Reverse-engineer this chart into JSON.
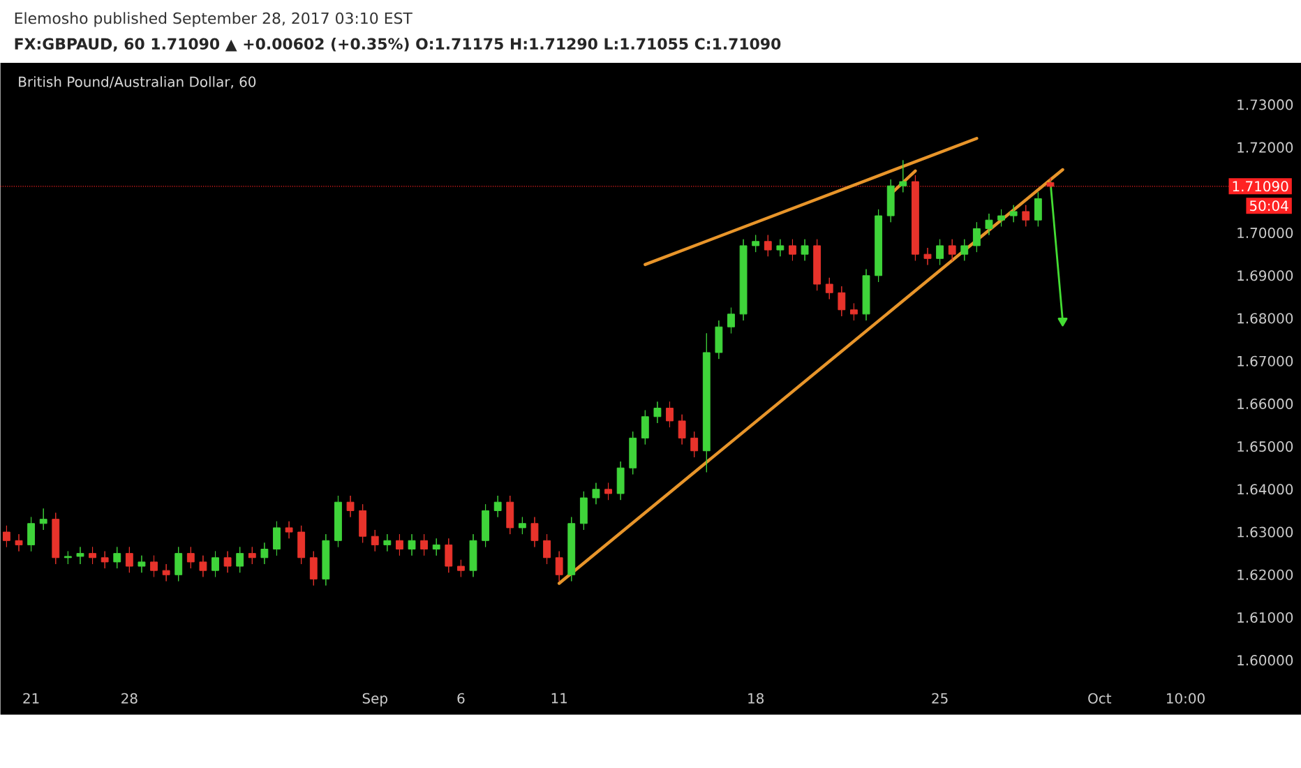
{
  "chart_data": {
    "type": "candlestick",
    "title": "FX:GBPAUD, 60  1.71090 ▲ +0.00602 (+0.35%) O:1.71175 H:1.71290 L:1.71055 C:1.71090",
    "subtitle": "British Pound/Australian Dollar, 60",
    "annotations": [
      "Elemosho published September 28, 2017 03:10 EST",
      "50:04"
    ],
    "categories": [
      null,
      null,
      "21",
      null,
      null,
      null,
      null,
      null,
      null,
      null,
      "28",
      null,
      null,
      null,
      null,
      null,
      null,
      null,
      null,
      null,
      null,
      null,
      null,
      null,
      null,
      null,
      null,
      null,
      null,
      null,
      "Sep",
      null,
      null,
      null,
      null,
      null,
      null,
      "6",
      null,
      null,
      null,
      null,
      null,
      null,
      null,
      "11",
      null,
      null,
      null,
      null,
      null,
      null,
      null,
      null,
      null,
      null,
      null,
      null,
      null,
      null,
      null,
      "18",
      null,
      null,
      null,
      null,
      null,
      null,
      null,
      null,
      null,
      null,
      null,
      null,
      null,
      null,
      "25",
      null,
      null,
      null,
      null,
      null,
      null,
      null,
      null,
      null,
      null,
      null,
      null,
      "Oct",
      null,
      null,
      null,
      null,
      null,
      null,
      "10:00",
      null,
      null,
      null
    ],
    "ohlc": [
      [
        1.63,
        1.6315,
        1.6265,
        1.628
      ],
      [
        1.628,
        1.6295,
        1.6255,
        1.627
      ],
      [
        1.627,
        1.6335,
        1.6255,
        1.632
      ],
      [
        1.632,
        1.6355,
        1.6305,
        1.633
      ],
      [
        1.633,
        1.6345,
        1.6225,
        1.624
      ],
      [
        1.624,
        1.6255,
        1.6225,
        1.6243
      ],
      [
        1.6243,
        1.6265,
        1.6225,
        1.625
      ],
      [
        1.625,
        1.6265,
        1.6225,
        1.624
      ],
      [
        1.624,
        1.6255,
        1.6215,
        1.623
      ],
      [
        1.623,
        1.6265,
        1.6215,
        1.625
      ],
      [
        1.625,
        1.6265,
        1.6205,
        1.622
      ],
      [
        1.622,
        1.6245,
        1.6205,
        1.623
      ],
      [
        1.623,
        1.6245,
        1.6195,
        1.621
      ],
      [
        1.621,
        1.6225,
        1.6185,
        1.62
      ],
      [
        1.62,
        1.6265,
        1.6185,
        1.625
      ],
      [
        1.625,
        1.6265,
        1.6215,
        1.623
      ],
      [
        1.623,
        1.6245,
        1.6195,
        1.621
      ],
      [
        1.621,
        1.6255,
        1.6195,
        1.624
      ],
      [
        1.624,
        1.6255,
        1.6205,
        1.622
      ],
      [
        1.622,
        1.6265,
        1.6205,
        1.625
      ],
      [
        1.625,
        1.6265,
        1.6225,
        1.624
      ],
      [
        1.624,
        1.6275,
        1.6225,
        1.626
      ],
      [
        1.626,
        1.6325,
        1.6245,
        1.631
      ],
      [
        1.631,
        1.6325,
        1.6285,
        1.63
      ],
      [
        1.63,
        1.6315,
        1.6225,
        1.624
      ],
      [
        1.624,
        1.6255,
        1.6175,
        1.619
      ],
      [
        1.619,
        1.6295,
        1.6175,
        1.628
      ],
      [
        1.628,
        1.6385,
        1.6265,
        1.637
      ],
      [
        1.637,
        1.6385,
        1.6335,
        1.635
      ],
      [
        1.635,
        1.6365,
        1.6275,
        1.629
      ],
      [
        1.629,
        1.6305,
        1.6255,
        1.627
      ],
      [
        1.627,
        1.6295,
        1.6255,
        1.628
      ],
      [
        1.628,
        1.6295,
        1.6245,
        1.626
      ],
      [
        1.626,
        1.6295,
        1.6245,
        1.628
      ],
      [
        1.628,
        1.6295,
        1.6245,
        1.626
      ],
      [
        1.626,
        1.6285,
        1.6245,
        1.627
      ],
      [
        1.627,
        1.6285,
        1.6205,
        1.622
      ],
      [
        1.622,
        1.6235,
        1.6195,
        1.621
      ],
      [
        1.621,
        1.6295,
        1.6195,
        1.628
      ],
      [
        1.628,
        1.6365,
        1.6265,
        1.635
      ],
      [
        1.635,
        1.6385,
        1.6335,
        1.637
      ],
      [
        1.637,
        1.6385,
        1.6295,
        1.631
      ],
      [
        1.631,
        1.6335,
        1.6295,
        1.632
      ],
      [
        1.632,
        1.6335,
        1.6265,
        1.628
      ],
      [
        1.628,
        1.6295,
        1.6225,
        1.624
      ],
      [
        1.624,
        1.6255,
        1.6185,
        1.62
      ],
      [
        1.62,
        1.6335,
        1.6185,
        1.632
      ],
      [
        1.632,
        1.6395,
        1.6305,
        1.638
      ],
      [
        1.638,
        1.6415,
        1.6365,
        1.64
      ],
      [
        1.64,
        1.6415,
        1.6375,
        1.639
      ],
      [
        1.639,
        1.6465,
        1.6375,
        1.645
      ],
      [
        1.645,
        1.6535,
        1.6435,
        1.652
      ],
      [
        1.652,
        1.6585,
        1.6505,
        1.657
      ],
      [
        1.657,
        1.6605,
        1.6555,
        1.659
      ],
      [
        1.659,
        1.6605,
        1.6545,
        1.656
      ],
      [
        1.656,
        1.6575,
        1.6505,
        1.652
      ],
      [
        1.652,
        1.6535,
        1.6475,
        1.649
      ],
      [
        1.649,
        1.6765,
        1.644,
        1.672
      ],
      [
        1.672,
        1.6795,
        1.6705,
        1.678
      ],
      [
        1.678,
        1.6825,
        1.6765,
        1.681
      ],
      [
        1.681,
        1.6985,
        1.6795,
        1.697
      ],
      [
        1.697,
        1.6995,
        1.6955,
        1.698
      ],
      [
        1.698,
        1.6995,
        1.6945,
        1.696
      ],
      [
        1.696,
        1.6985,
        1.6945,
        1.697
      ],
      [
        1.697,
        1.6985,
        1.6935,
        1.695
      ],
      [
        1.695,
        1.6985,
        1.6935,
        1.697
      ],
      [
        1.697,
        1.6985,
        1.6865,
        1.688
      ],
      [
        1.688,
        1.6895,
        1.6845,
        1.686
      ],
      [
        1.686,
        1.6875,
        1.6805,
        1.682
      ],
      [
        1.682,
        1.6835,
        1.6795,
        1.681
      ],
      [
        1.681,
        1.6915,
        1.6795,
        1.69
      ],
      [
        1.69,
        1.7055,
        1.6885,
        1.704
      ],
      [
        1.704,
        1.7125,
        1.7025,
        1.711
      ],
      [
        1.711,
        1.717,
        1.7095,
        1.712
      ],
      [
        1.712,
        1.7135,
        1.6935,
        1.695
      ],
      [
        1.695,
        1.6965,
        1.6925,
        1.694
      ],
      [
        1.694,
        1.6985,
        1.6925,
        1.697
      ],
      [
        1.697,
        1.6985,
        1.6935,
        1.695
      ],
      [
        1.695,
        1.6985,
        1.6935,
        1.697
      ],
      [
        1.697,
        1.7025,
        1.6955,
        1.701
      ],
      [
        1.701,
        1.7045,
        1.6995,
        1.703
      ],
      [
        1.703,
        1.7055,
        1.7015,
        1.704
      ],
      [
        1.704,
        1.7065,
        1.7025,
        1.705
      ],
      [
        1.705,
        1.7065,
        1.7015,
        1.703
      ],
      [
        1.703,
        1.7095,
        1.7015,
        1.708
      ],
      [
        1.71175,
        1.7129,
        1.71055,
        1.7109
      ],
      null,
      null,
      null,
      null,
      null,
      null,
      null,
      null,
      null,
      null,
      null,
      null,
      null,
      null
    ],
    "series": [
      {
        "type": "line",
        "color": "#e8952a",
        "values": [
          null,
          null,
          null,
          null,
          null,
          null,
          null,
          null,
          null,
          null,
          null,
          null,
          null,
          null,
          null,
          null,
          null,
          null,
          null,
          null,
          null,
          null,
          null,
          null,
          null,
          null,
          null,
          null,
          null,
          null,
          null,
          null,
          null,
          null,
          null,
          null,
          null,
          null,
          null,
          null,
          null,
          null,
          null,
          null,
          null,
          null,
          null,
          null,
          null,
          null,
          null,
          null,
          1.6926,
          null,
          null,
          null,
          null,
          null,
          null,
          null,
          null,
          null,
          null,
          null,
          null,
          null,
          null,
          null,
          null,
          null,
          null,
          null,
          null,
          null,
          null,
          null,
          null,
          null,
          null,
          1.7221,
          null,
          null,
          null,
          null,
          null,
          null,
          null,
          null,
          null,
          null,
          null,
          null,
          null,
          null,
          null,
          null,
          null,
          null,
          null,
          null
        ]
      },
      {
        "type": "line",
        "color": "#e8952a",
        "values": [
          null,
          null,
          null,
          null,
          null,
          null,
          null,
          null,
          null,
          null,
          null,
          null,
          null,
          null,
          null,
          null,
          null,
          null,
          null,
          null,
          null,
          null,
          null,
          null,
          null,
          null,
          null,
          null,
          null,
          null,
          null,
          null,
          null,
          null,
          null,
          null,
          null,
          null,
          null,
          null,
          null,
          null,
          null,
          null,
          null,
          1.618,
          null,
          null,
          null,
          null,
          null,
          null,
          null,
          null,
          null,
          null,
          null,
          null,
          null,
          null,
          null,
          null,
          null,
          null,
          null,
          null,
          null,
          null,
          null,
          null,
          null,
          null,
          null,
          null,
          null,
          null,
          null,
          null,
          null,
          null,
          null,
          null,
          null,
          null,
          null,
          null,
          1.7148,
          null,
          null,
          null,
          null,
          null,
          null,
          null,
          null,
          null,
          null,
          null,
          null,
          null
        ]
      },
      {
        "type": "line",
        "color": "#e8952a",
        "values": [
          null,
          null,
          null,
          null,
          null,
          null,
          null,
          null,
          null,
          null,
          null,
          null,
          null,
          null,
          null,
          null,
          null,
          null,
          null,
          null,
          null,
          null,
          null,
          null,
          null,
          null,
          null,
          null,
          null,
          null,
          null,
          null,
          null,
          null,
          null,
          null,
          null,
          null,
          null,
          null,
          null,
          null,
          null,
          null,
          null,
          null,
          null,
          null,
          null,
          null,
          null,
          null,
          null,
          null,
          null,
          null,
          null,
          null,
          null,
          null,
          null,
          null,
          null,
          null,
          null,
          null,
          null,
          null,
          null,
          null,
          null,
          null,
          1.7091,
          null,
          1.7145,
          null,
          null,
          null,
          null,
          null,
          null,
          null,
          null,
          null,
          null,
          null,
          null,
          null,
          null,
          null,
          null,
          null,
          null,
          null,
          null,
          null,
          null,
          null,
          null,
          null
        ]
      },
      {
        "type": "line",
        "color": "#44dd33",
        "marker": "triangle",
        "values": [
          null,
          null,
          null,
          null,
          null,
          null,
          null,
          null,
          null,
          null,
          null,
          null,
          null,
          null,
          null,
          null,
          null,
          null,
          null,
          null,
          null,
          null,
          null,
          null,
          null,
          null,
          null,
          null,
          null,
          null,
          null,
          null,
          null,
          null,
          null,
          null,
          null,
          null,
          null,
          null,
          null,
          null,
          null,
          null,
          null,
          null,
          null,
          null,
          null,
          null,
          null,
          null,
          null,
          null,
          null,
          null,
          null,
          null,
          null,
          null,
          null,
          null,
          null,
          null,
          null,
          null,
          null,
          null,
          null,
          null,
          null,
          null,
          null,
          null,
          null,
          null,
          null,
          null,
          null,
          null,
          null,
          null,
          null,
          null,
          null,
          1.712,
          1.6794,
          null,
          null,
          null,
          null,
          null,
          null,
          null,
          null,
          null,
          null,
          null,
          null,
          null
        ]
      }
    ],
    "ref_lines": [
      {
        "axis": "y",
        "value": 1.7109,
        "label": "1.71090",
        "color": "#ff2222",
        "line_style": "dotted"
      }
    ],
    "ylim": [
      1.6,
      1.73
    ],
    "yticks": [
      {
        "value": 1.6,
        "label": "1.60000"
      },
      {
        "value": 1.61,
        "label": "1.61000"
      },
      {
        "value": 1.62,
        "label": "1.62000"
      },
      {
        "value": 1.63,
        "label": "1.63000"
      },
      {
        "value": 1.64,
        "label": "1.64000"
      },
      {
        "value": 1.65,
        "label": "1.65000"
      },
      {
        "value": 1.66,
        "label": "1.66000"
      },
      {
        "value": 1.67,
        "label": "1.67000"
      },
      {
        "value": 1.68,
        "label": "1.68000"
      },
      {
        "value": 1.69,
        "label": "1.69000"
      },
      {
        "value": 1.7,
        "label": "1.70000"
      },
      {
        "value": 1.72,
        "label": "1.72000"
      },
      {
        "value": 1.73,
        "label": "1.73000"
      }
    ],
    "grid": false
  }
}
